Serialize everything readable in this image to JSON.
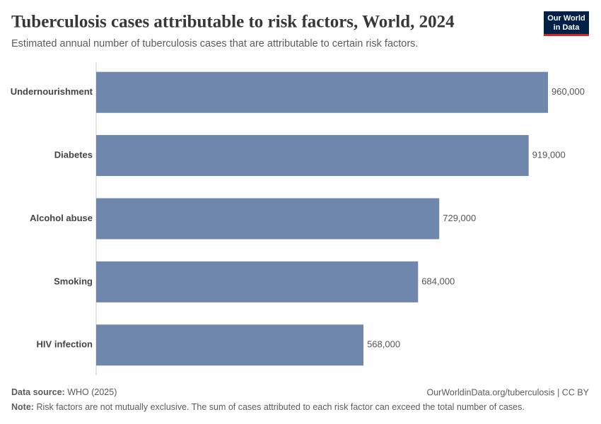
{
  "chart_data": {
    "type": "bar",
    "orientation": "horizontal",
    "title": "Tuberculosis cases attributable to risk factors, World, 2024",
    "subtitle": "Estimated annual number of tuberculosis cases that are attributable to certain risk factors.",
    "categories": [
      "Undernourishment",
      "Diabetes",
      "Alcohol abuse",
      "Smoking",
      "HIV infection"
    ],
    "values": [
      960000,
      919000,
      729000,
      684000,
      568000
    ],
    "value_labels": [
      "960,000",
      "919,000",
      "729,000",
      "684,000",
      "568,000"
    ],
    "color": "#6f87ad",
    "xlim": [
      0,
      960000
    ]
  },
  "logo": {
    "lines": [
      "Our World",
      "in Data"
    ]
  },
  "footer": {
    "source_label": "Data source:",
    "source": "WHO (2025)",
    "url": "OurWorldinData.org/tuberculosis | CC BY",
    "note_label": "Note:",
    "note": "Risk factors are not mutually exclusive. The sum of cases attributed to each risk factor can exceed the total number of cases."
  }
}
